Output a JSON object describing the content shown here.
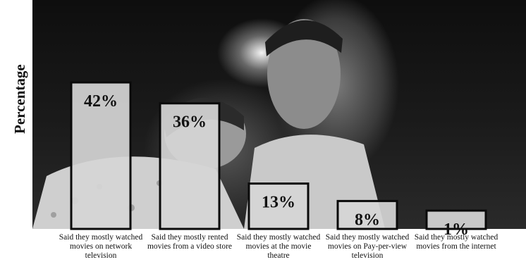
{
  "chart_data": {
    "type": "bar",
    "ylabel": "Percentage",
    "categories": [
      "Said they mostly watched movies on network television",
      "Said they mostly rented movies from a video store",
      "Said they mostly watched movies at the movie theatre",
      "Said they mostly watched movies on Pay-per-view television",
      "Said they mostly watched movies from the internet"
    ],
    "values": [
      42,
      36,
      13,
      8,
      1
    ],
    "value_labels": [
      "42%",
      "36%",
      "13%",
      "8%",
      "1%"
    ],
    "ylim": [
      0,
      50
    ],
    "grid": false,
    "legend": "none"
  },
  "colors": {
    "bar_fill": "#d6d6d6",
    "bar_stroke": "#0a0a0a",
    "text": "#111111"
  }
}
